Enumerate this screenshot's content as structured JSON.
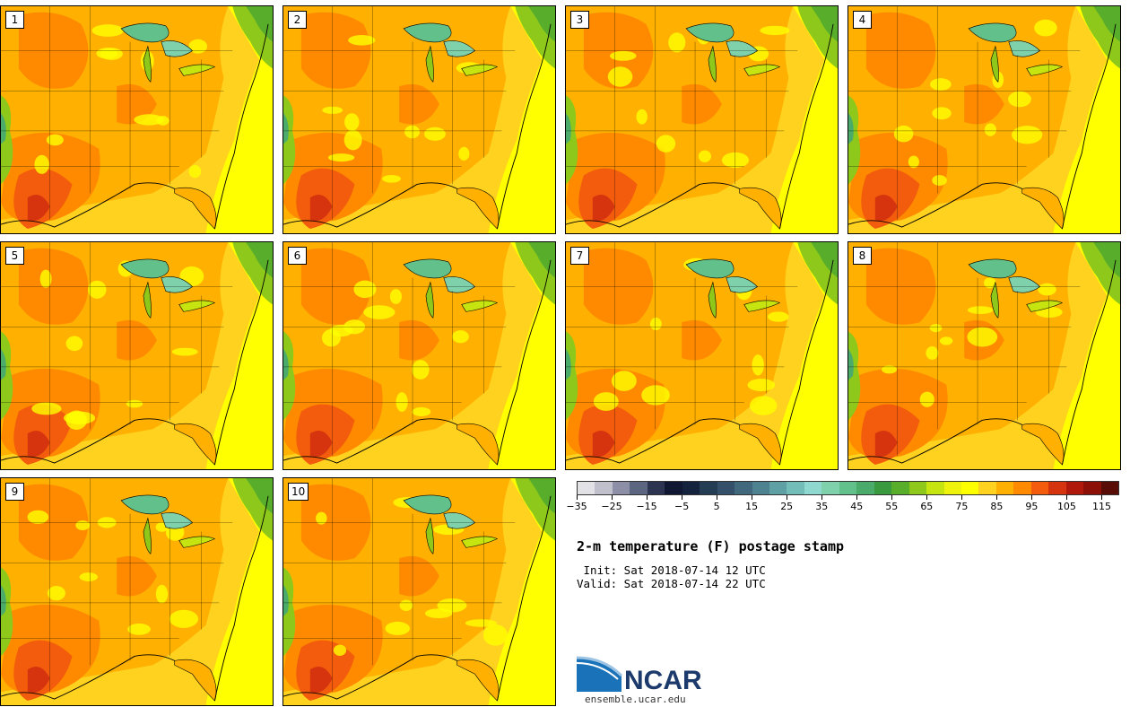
{
  "panels": [
    {
      "label": "1"
    },
    {
      "label": "2"
    },
    {
      "label": "3"
    },
    {
      "label": "4"
    },
    {
      "label": "5"
    },
    {
      "label": "6"
    },
    {
      "label": "7"
    },
    {
      "label": "8"
    },
    {
      "label": "9"
    },
    {
      "label": "10"
    }
  ],
  "colorbar": {
    "colors": [
      "#e2e2e6",
      "#c0c0cc",
      "#8c8fa6",
      "#5c6680",
      "#2c3452",
      "#0f1733",
      "#14223d",
      "#253c55",
      "#34506a",
      "#42687e",
      "#4e8290",
      "#5ea0a4",
      "#73bdb8",
      "#8fd8cf",
      "#7fd1ac",
      "#62c08a",
      "#4aab6a",
      "#3a9a40",
      "#58ad2a",
      "#8ec81a",
      "#c6e40f",
      "#eef20c",
      "#ffff00",
      "#ffd21f",
      "#ffb000",
      "#ff8a00",
      "#f25c0c",
      "#d6330f",
      "#b0180c",
      "#8c1008",
      "#5a0c06"
    ],
    "ticks": [
      "-35",
      "-25",
      "-15",
      "-5",
      "5",
      "15",
      "25",
      "35",
      "45",
      "55",
      "65",
      "75",
      "85",
      "95",
      "105",
      "115"
    ]
  },
  "title": "2-m temperature (F) postage stamp",
  "init": " Init: Sat 2018-07-14 12 UTC",
  "valid": "Valid: Sat 2018-07-14 22 UTC",
  "logo": {
    "text": "NCAR",
    "url": "ensemble.ucar.edu"
  }
}
